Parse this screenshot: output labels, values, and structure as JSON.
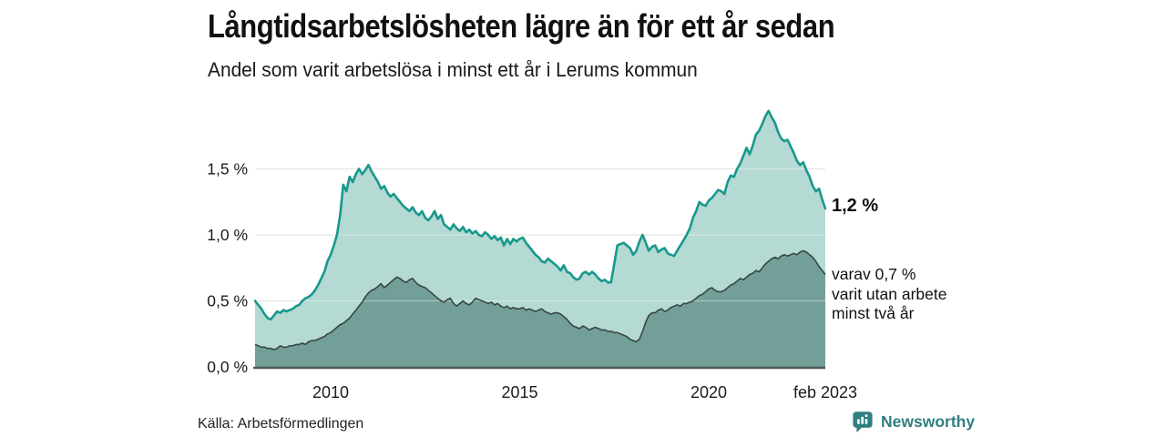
{
  "header": {
    "title": "Långtidsarbetslösheten lägre än för ett år sedan",
    "subtitle": "Andel som varit arbetslösa i minst ett år i Lerums kommun"
  },
  "annotations": {
    "latest_total": "1,2 %",
    "secondary": "varav 0,7 %\nvarit utan arbete\nminst två år"
  },
  "source": {
    "label": "Källa: Arbetsförmedlingen"
  },
  "branding": {
    "wordmark": "Newsworthy"
  },
  "colors": {
    "line_total": "#17998C",
    "fill_total": "#B5D9D3",
    "line_two_years": "#374745",
    "fill_two_years": "#739F99",
    "grid": "#D9DCDC",
    "grid_over_fill": "rgba(255,255,255,0.38)",
    "axis": "#4D5B58",
    "text": "#1C1C1C",
    "brand": "#2F7F81"
  },
  "chart_data": {
    "type": "area",
    "title": "Långtidsarbetslösheten lägre än för ett år sedan",
    "subtitle": "Andel som varit arbetslösa i minst ett år i Lerums kommun",
    "x_unit": "decimal_year_monthly",
    "x_start": 2008.0,
    "x_step": 0.0833333,
    "x_end": 2023.0833,
    "ylim": [
      0,
      2.03
    ],
    "grid": true,
    "legend": "none",
    "yticks": [
      {
        "value": 0.0,
        "label": "0,0 %"
      },
      {
        "value": 0.5,
        "label": "0,5 %"
      },
      {
        "value": 1.0,
        "label": "1,0 %"
      },
      {
        "value": 1.5,
        "label": "1,5 %"
      }
    ],
    "xticks": [
      {
        "value": 2010,
        "label": "2010"
      },
      {
        "value": 2015,
        "label": "2015"
      },
      {
        "value": 2020,
        "label": "2020"
      },
      {
        "value": 2023.0833,
        "label": "feb 2023"
      }
    ],
    "series": [
      {
        "name": "Andel arbetslösa minst ett år",
        "unit": "%",
        "color": "#17998C",
        "fill": "#B5D9D3",
        "latest_label": "1,2 %",
        "values": [
          0.5,
          0.47,
          0.44,
          0.4,
          0.37,
          0.36,
          0.39,
          0.42,
          0.41,
          0.43,
          0.42,
          0.43,
          0.44,
          0.46,
          0.47,
          0.5,
          0.52,
          0.53,
          0.55,
          0.58,
          0.62,
          0.67,
          0.72,
          0.8,
          0.85,
          0.92,
          1.0,
          1.15,
          1.38,
          1.33,
          1.44,
          1.4,
          1.46,
          1.5,
          1.46,
          1.49,
          1.53,
          1.48,
          1.44,
          1.4,
          1.35,
          1.37,
          1.32,
          1.29,
          1.31,
          1.28,
          1.25,
          1.22,
          1.2,
          1.18,
          1.21,
          1.17,
          1.15,
          1.18,
          1.13,
          1.11,
          1.14,
          1.18,
          1.12,
          1.15,
          1.08,
          1.06,
          1.04,
          1.08,
          1.05,
          1.03,
          1.06,
          1.02,
          1.04,
          1.01,
          1.03,
          1.0,
          0.99,
          1.02,
          1.0,
          0.97,
          0.99,
          0.96,
          0.98,
          0.92,
          0.97,
          0.93,
          0.97,
          0.95,
          0.97,
          0.98,
          0.94,
          0.91,
          0.88,
          0.85,
          0.83,
          0.8,
          0.79,
          0.82,
          0.8,
          0.78,
          0.76,
          0.73,
          0.77,
          0.72,
          0.71,
          0.68,
          0.66,
          0.67,
          0.71,
          0.72,
          0.7,
          0.72,
          0.7,
          0.67,
          0.65,
          0.66,
          0.64,
          0.64,
          0.78,
          0.92,
          0.93,
          0.94,
          0.92,
          0.9,
          0.85,
          0.88,
          0.95,
          1.0,
          0.94,
          0.88,
          0.91,
          0.92,
          0.87,
          0.89,
          0.9,
          0.86,
          0.85,
          0.84,
          0.88,
          0.92,
          0.96,
          1.0,
          1.05,
          1.13,
          1.18,
          1.25,
          1.23,
          1.22,
          1.26,
          1.28,
          1.31,
          1.34,
          1.33,
          1.31,
          1.4,
          1.45,
          1.44,
          1.5,
          1.54,
          1.6,
          1.66,
          1.61,
          1.68,
          1.76,
          1.79,
          1.84,
          1.9,
          1.94,
          1.89,
          1.85,
          1.78,
          1.73,
          1.71,
          1.72,
          1.67,
          1.62,
          1.56,
          1.53,
          1.55,
          1.49,
          1.44,
          1.37,
          1.33,
          1.35,
          1.27,
          1.2
        ]
      },
      {
        "name": "Varav utan arbete minst två år",
        "unit": "%",
        "color": "#374745",
        "fill": "#739F99",
        "latest_label": "0,7 %",
        "values": [
          0.17,
          0.16,
          0.15,
          0.15,
          0.14,
          0.14,
          0.13,
          0.14,
          0.16,
          0.15,
          0.15,
          0.16,
          0.16,
          0.17,
          0.17,
          0.18,
          0.17,
          0.19,
          0.2,
          0.2,
          0.21,
          0.22,
          0.23,
          0.25,
          0.26,
          0.28,
          0.3,
          0.32,
          0.33,
          0.35,
          0.37,
          0.4,
          0.43,
          0.46,
          0.49,
          0.53,
          0.56,
          0.58,
          0.59,
          0.61,
          0.63,
          0.6,
          0.62,
          0.64,
          0.66,
          0.68,
          0.67,
          0.65,
          0.64,
          0.66,
          0.67,
          0.64,
          0.62,
          0.61,
          0.6,
          0.58,
          0.56,
          0.54,
          0.52,
          0.5,
          0.49,
          0.51,
          0.52,
          0.48,
          0.46,
          0.48,
          0.5,
          0.48,
          0.47,
          0.49,
          0.52,
          0.51,
          0.5,
          0.49,
          0.48,
          0.49,
          0.47,
          0.48,
          0.46,
          0.45,
          0.46,
          0.44,
          0.45,
          0.44,
          0.44,
          0.45,
          0.43,
          0.44,
          0.43,
          0.42,
          0.43,
          0.44,
          0.42,
          0.41,
          0.4,
          0.41,
          0.41,
          0.4,
          0.38,
          0.36,
          0.33,
          0.31,
          0.3,
          0.29,
          0.31,
          0.3,
          0.28,
          0.29,
          0.3,
          0.29,
          0.28,
          0.28,
          0.27,
          0.27,
          0.26,
          0.26,
          0.25,
          0.24,
          0.23,
          0.21,
          0.2,
          0.19,
          0.21,
          0.27,
          0.34,
          0.39,
          0.41,
          0.41,
          0.43,
          0.44,
          0.42,
          0.43,
          0.45,
          0.46,
          0.47,
          0.46,
          0.48,
          0.48,
          0.49,
          0.5,
          0.52,
          0.54,
          0.55,
          0.57,
          0.59,
          0.6,
          0.58,
          0.57,
          0.57,
          0.58,
          0.6,
          0.62,
          0.63,
          0.65,
          0.67,
          0.66,
          0.68,
          0.7,
          0.71,
          0.73,
          0.72,
          0.75,
          0.78,
          0.8,
          0.82,
          0.83,
          0.82,
          0.84,
          0.85,
          0.84,
          0.85,
          0.86,
          0.85,
          0.87,
          0.88,
          0.87,
          0.85,
          0.83,
          0.8,
          0.76,
          0.73,
          0.7
        ]
      }
    ]
  }
}
